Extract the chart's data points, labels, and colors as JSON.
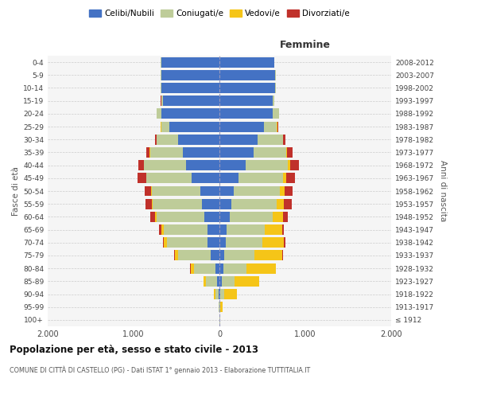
{
  "age_groups": [
    "100+",
    "95-99",
    "90-94",
    "85-89",
    "80-84",
    "75-79",
    "70-74",
    "65-69",
    "60-64",
    "55-59",
    "50-54",
    "45-49",
    "40-44",
    "35-39",
    "30-34",
    "25-29",
    "20-24",
    "15-19",
    "10-14",
    "5-9",
    "0-4"
  ],
  "birth_years": [
    "≤ 1912",
    "1913-1917",
    "1918-1922",
    "1923-1927",
    "1928-1932",
    "1933-1937",
    "1938-1942",
    "1943-1947",
    "1948-1952",
    "1953-1957",
    "1958-1962",
    "1963-1967",
    "1968-1972",
    "1973-1977",
    "1978-1982",
    "1983-1987",
    "1988-1992",
    "1993-1997",
    "1998-2002",
    "2003-2007",
    "2008-2012"
  ],
  "males": {
    "celibi": [
      2,
      3,
      10,
      25,
      50,
      100,
      135,
      140,
      175,
      200,
      220,
      320,
      390,
      430,
      480,
      580,
      680,
      660,
      680,
      680,
      680
    ],
    "coniugati": [
      2,
      5,
      40,
      130,
      250,
      380,
      480,
      510,
      560,
      580,
      570,
      530,
      490,
      380,
      250,
      100,
      50,
      20,
      5,
      5,
      3
    ],
    "vedovi": [
      0,
      3,
      15,
      30,
      35,
      40,
      30,
      25,
      15,
      10,
      8,
      5,
      3,
      2,
      1,
      1,
      0,
      0,
      0,
      0,
      0
    ],
    "divorziati": [
      0,
      0,
      0,
      0,
      5,
      10,
      15,
      25,
      55,
      70,
      75,
      100,
      60,
      40,
      15,
      5,
      2,
      1,
      0,
      0,
      0
    ]
  },
  "females": {
    "nubili": [
      2,
      3,
      10,
      30,
      45,
      60,
      70,
      80,
      120,
      140,
      170,
      220,
      310,
      400,
      440,
      520,
      620,
      620,
      650,
      650,
      640
    ],
    "coniugate": [
      3,
      10,
      50,
      150,
      270,
      350,
      430,
      450,
      500,
      530,
      530,
      520,
      490,
      380,
      300,
      150,
      70,
      20,
      5,
      3,
      2
    ],
    "vedove": [
      2,
      25,
      140,
      280,
      340,
      320,
      250,
      200,
      120,
      80,
      60,
      40,
      20,
      10,
      5,
      5,
      2,
      1,
      0,
      0,
      0
    ],
    "divorziate": [
      0,
      0,
      0,
      0,
      5,
      10,
      15,
      20,
      60,
      90,
      95,
      100,
      110,
      60,
      20,
      10,
      5,
      2,
      0,
      0,
      0
    ]
  },
  "color_celibi": "#4472C4",
  "color_coniugati": "#BECC99",
  "color_vedovi": "#F5C518",
  "color_divorziati": "#C0312B",
  "xlim": 2000,
  "title": "Popolazione per età, sesso e stato civile - 2013",
  "subtitle": "COMUNE DI CITTÀ DI CASTELLO (PG) - Dati ISTAT 1° gennaio 2013 - Elaborazione TUTTITALIA.IT",
  "ylabel_left": "Fasce di età",
  "ylabel_right": "Anni di nascita",
  "xlabel_femmine": "Femmine",
  "bg_color": "#f5f5f5",
  "grid_color": "#cccccc"
}
